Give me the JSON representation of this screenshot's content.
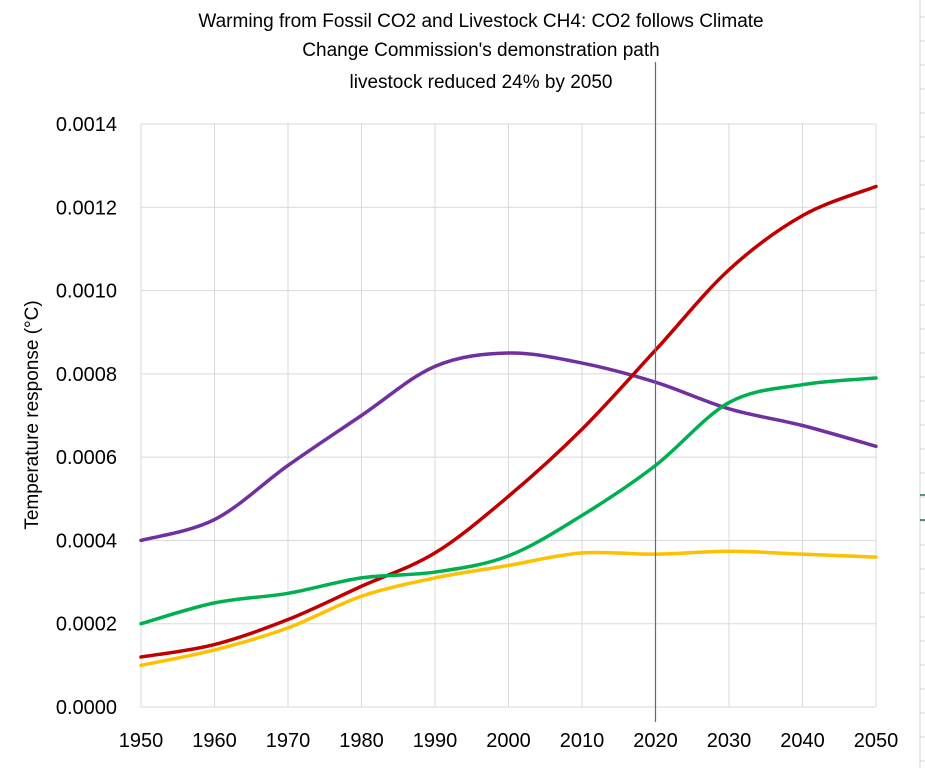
{
  "chart_data": {
    "type": "line",
    "title_lines": [
      "Warming from Fossil CO2 and Livestock CH4: CO2 follows Climate",
      "Change Commission's  demonstration path",
      "livestock reduced 24% by 2050"
    ],
    "xlabel": "",
    "ylabel": "Temperature response (°C)",
    "x": [
      1950,
      1960,
      1970,
      1980,
      1990,
      2000,
      2010,
      2020,
      2030,
      2040,
      2050
    ],
    "xlim": [
      1950,
      2050
    ],
    "ylim": [
      0,
      0.0014
    ],
    "x_ticks": [
      "1950",
      "1960",
      "1970",
      "1980",
      "1990",
      "2000",
      "2010",
      "2020",
      "2030",
      "2040",
      "2050"
    ],
    "y_ticks": [
      "0.0000",
      "0.0002",
      "0.0004",
      "0.0006",
      "0.0008",
      "0.0010",
      "0.0012",
      "0.0014"
    ],
    "y_tick_values": [
      0,
      0.0002,
      0.0004,
      0.0006,
      0.0008,
      0.001,
      0.0012,
      0.0014
    ],
    "grid": true,
    "legend": "none",
    "reference_line": {
      "x": 2020,
      "color": "#4a6fa5"
    },
    "series": [
      {
        "name": "purple",
        "color": "#7030a0",
        "values": [
          0.0004,
          0.00045,
          0.00058,
          0.0007,
          0.000818,
          0.00085,
          0.000826,
          0.00078,
          0.000716,
          0.000676,
          0.000626
        ]
      },
      {
        "name": "red",
        "color": "#c00000",
        "values": [
          0.00012,
          0.00015,
          0.00021,
          0.00029,
          0.00037,
          0.000506,
          0.000667,
          0.000857,
          0.00105,
          0.00118,
          0.00125
        ]
      },
      {
        "name": "green",
        "color": "#00b050",
        "values": [
          0.0002,
          0.00025,
          0.000273,
          0.00031,
          0.000324,
          0.000363,
          0.00046,
          0.00058,
          0.000731,
          0.000774,
          0.00079
        ]
      },
      {
        "name": "yellow",
        "color": "#ffc000",
        "values": [
          0.0001,
          0.000137,
          0.00019,
          0.000266,
          0.00031,
          0.00034,
          0.00037,
          0.000367,
          0.000374,
          0.000367,
          0.00036
        ]
      }
    ]
  }
}
